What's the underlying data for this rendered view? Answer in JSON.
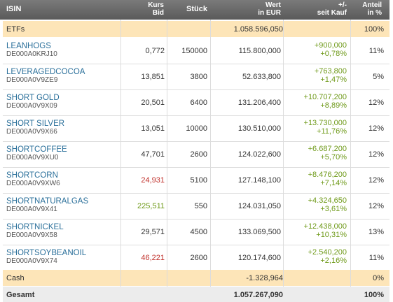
{
  "header": {
    "isin": "ISIN",
    "kurs_1": "Kurs",
    "kurs_2": "Bid",
    "stueck": "Stück",
    "wert_1": "Wert",
    "wert_2": "in EUR",
    "change_1": "+/-",
    "change_2": "seit Kauf",
    "anteil_1": "Anteil",
    "anteil_2": "in %"
  },
  "etfs": {
    "label": "ETFs",
    "wert": "1.058.596,050",
    "anteil": "100%"
  },
  "rows": [
    {
      "name": "LEANHOGS",
      "isin": "DE000A0KRJ10",
      "bid": "0,772",
      "bid_color": "#333333",
      "qty": "150000",
      "wert": "115.800,000",
      "chg_abs": "+900,000",
      "chg_pct": "+0,78%",
      "anteil": "11%"
    },
    {
      "name": "LEVERAGEDCOCOA",
      "isin": "DE000A0V9ZE9",
      "bid": "13,851",
      "bid_color": "#333333",
      "qty": "3800",
      "wert": "52.633,800",
      "chg_abs": "+763,800",
      "chg_pct": "+1,47%",
      "anteil": "5%"
    },
    {
      "name": "SHORT GOLD",
      "isin": "DE000A0V9X09",
      "bid": "20,501",
      "bid_color": "#333333",
      "qty": "6400",
      "wert": "131.206,400",
      "chg_abs": "+10.707,200",
      "chg_pct": "+8,89%",
      "anteil": "12%"
    },
    {
      "name": "SHORT SILVER",
      "isin": "DE000A0V9X66",
      "bid": "13,051",
      "bid_color": "#333333",
      "qty": "10000",
      "wert": "130.510,000",
      "chg_abs": "+13.730,000",
      "chg_pct": "+11,76%",
      "anteil": "12%"
    },
    {
      "name": "SHORTCOFFEE",
      "isin": "DE000A0V9XU0",
      "bid": "47,701",
      "bid_color": "#333333",
      "qty": "2600",
      "wert": "124.022,600",
      "chg_abs": "+6.687,200",
      "chg_pct": "+5,70%",
      "anteil": "12%"
    },
    {
      "name": "SHORTCORN",
      "isin": "DE000A0V9XW6",
      "bid": "24,931",
      "bid_color": "#c0302b",
      "qty": "5100",
      "wert": "127.148,100",
      "chg_abs": "+8.476,200",
      "chg_pct": "+7,14%",
      "anteil": "12%"
    },
    {
      "name": "SHORTNATURALGAS",
      "isin": "DE000A0V9X41",
      "bid": "225,511",
      "bid_color": "#6f9a1a",
      "qty": "550",
      "wert": "124.031,050",
      "chg_abs": "+4.324,650",
      "chg_pct": "+3,61%",
      "anteil": "12%"
    },
    {
      "name": "SHORTNICKEL",
      "isin": "DE000A0V9X58",
      "bid": "29,571",
      "bid_color": "#333333",
      "qty": "4500",
      "wert": "133.069,500",
      "chg_abs": "+12.438,000",
      "chg_pct": "+10,31%",
      "anteil": "13%"
    },
    {
      "name": "SHORTSOYBEANOIL",
      "isin": "DE000A0V9X74",
      "bid": "46,221",
      "bid_color": "#c0302b",
      "qty": "2600",
      "wert": "120.174,600",
      "chg_abs": "+2.540,200",
      "chg_pct": "+2,16%",
      "anteil": "11%"
    }
  ],
  "cash": {
    "label": "Cash",
    "wert": "-1.328,964",
    "anteil": "0%"
  },
  "total": {
    "label": "Gesamt",
    "wert": "1.057.267,090",
    "anteil": "100%"
  }
}
